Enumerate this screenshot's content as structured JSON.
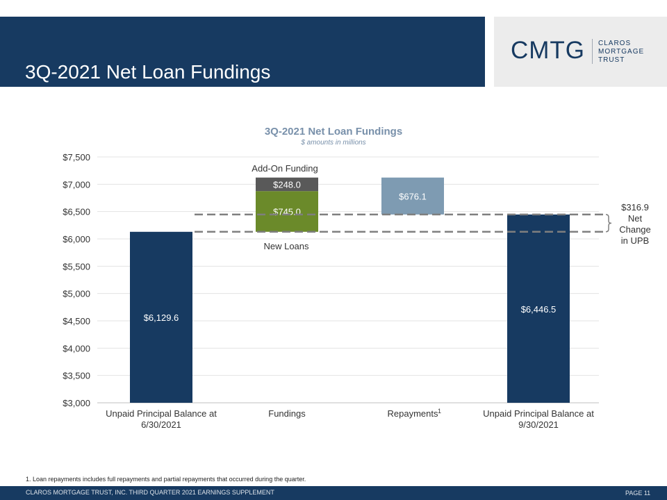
{
  "header": {
    "title": "3Q-2021 Net Loan Fundings"
  },
  "logo": {
    "mark": "CMTG",
    "line1": "CLAROS",
    "line2": "MORTGAGE",
    "line3": "TRUST"
  },
  "chart_data": {
    "type": "waterfall",
    "title": "3Q-2021 Net Loan Fundings",
    "subtitle": "$ amounts in millions",
    "ylim": [
      3000,
      7500
    ],
    "y_ticks": [
      "$3,000",
      "$3,500",
      "$4,000",
      "$4,500",
      "$5,000",
      "$5,500",
      "$6,000",
      "$6,500",
      "$7,000",
      "$7,500"
    ],
    "grid": true,
    "categories": [
      "Unpaid Principal Balance at 6/30/2021",
      "Fundings",
      "Repayments",
      "Unpaid Principal Balance at 9/30/2021"
    ],
    "category_label_lines": [
      [
        "Unpaid Principal Balance at",
        "6/30/2021"
      ],
      [
        "Fundings"
      ],
      [
        "Repayments"
      ],
      [
        "Unpaid Principal Balance at",
        "9/30/2021"
      ]
    ],
    "category_superscripts": [
      "",
      "",
      "1",
      ""
    ],
    "bars": [
      {
        "category": "Unpaid Principal Balance at 6/30/2021",
        "start": 3000,
        "end": 6129.6,
        "label": "$6,129.6",
        "color": "#173a61",
        "label_color": "#ffffff"
      },
      {
        "category": "Fundings",
        "name": "New Loans",
        "start": 6129.6,
        "end": 6874.6,
        "label": "$745.0",
        "color": "#6b8a2a",
        "label_color": "#ffffff"
      },
      {
        "category": "Fundings",
        "name": "Add-On Funding",
        "start": 6874.6,
        "end": 7122.6,
        "label": "$248.0",
        "color": "#595959",
        "label_color": "#ffffff"
      },
      {
        "category": "Repayments",
        "start": 6446.5,
        "end": 7122.6,
        "label": "$676.1",
        "color": "#7e9bb2",
        "label_color": "#ffffff"
      },
      {
        "category": "Unpaid Principal Balance at 9/30/2021",
        "start": 3000,
        "end": 6446.5,
        "label": "$6,446.5",
        "color": "#173a61",
        "label_color": "#ffffff"
      }
    ],
    "annotations": {
      "add_on_label": "Add-On Funding",
      "new_loans_label": "New Loans",
      "net_change_lines": [
        "$316.9",
        "Net",
        "Change",
        "in UPB"
      ],
      "net_change_from": 6129.6,
      "net_change_to": 6446.5
    }
  },
  "footnote": "1.  Loan repayments includes full repayments and partial repayments that occurred during the quarter.",
  "footer": {
    "text": "CLAROS MORTGAGE TRUST, INC. THIRD QUARTER 2021 EARNINGS SUPPLEMENT",
    "page": "PAGE 11"
  }
}
